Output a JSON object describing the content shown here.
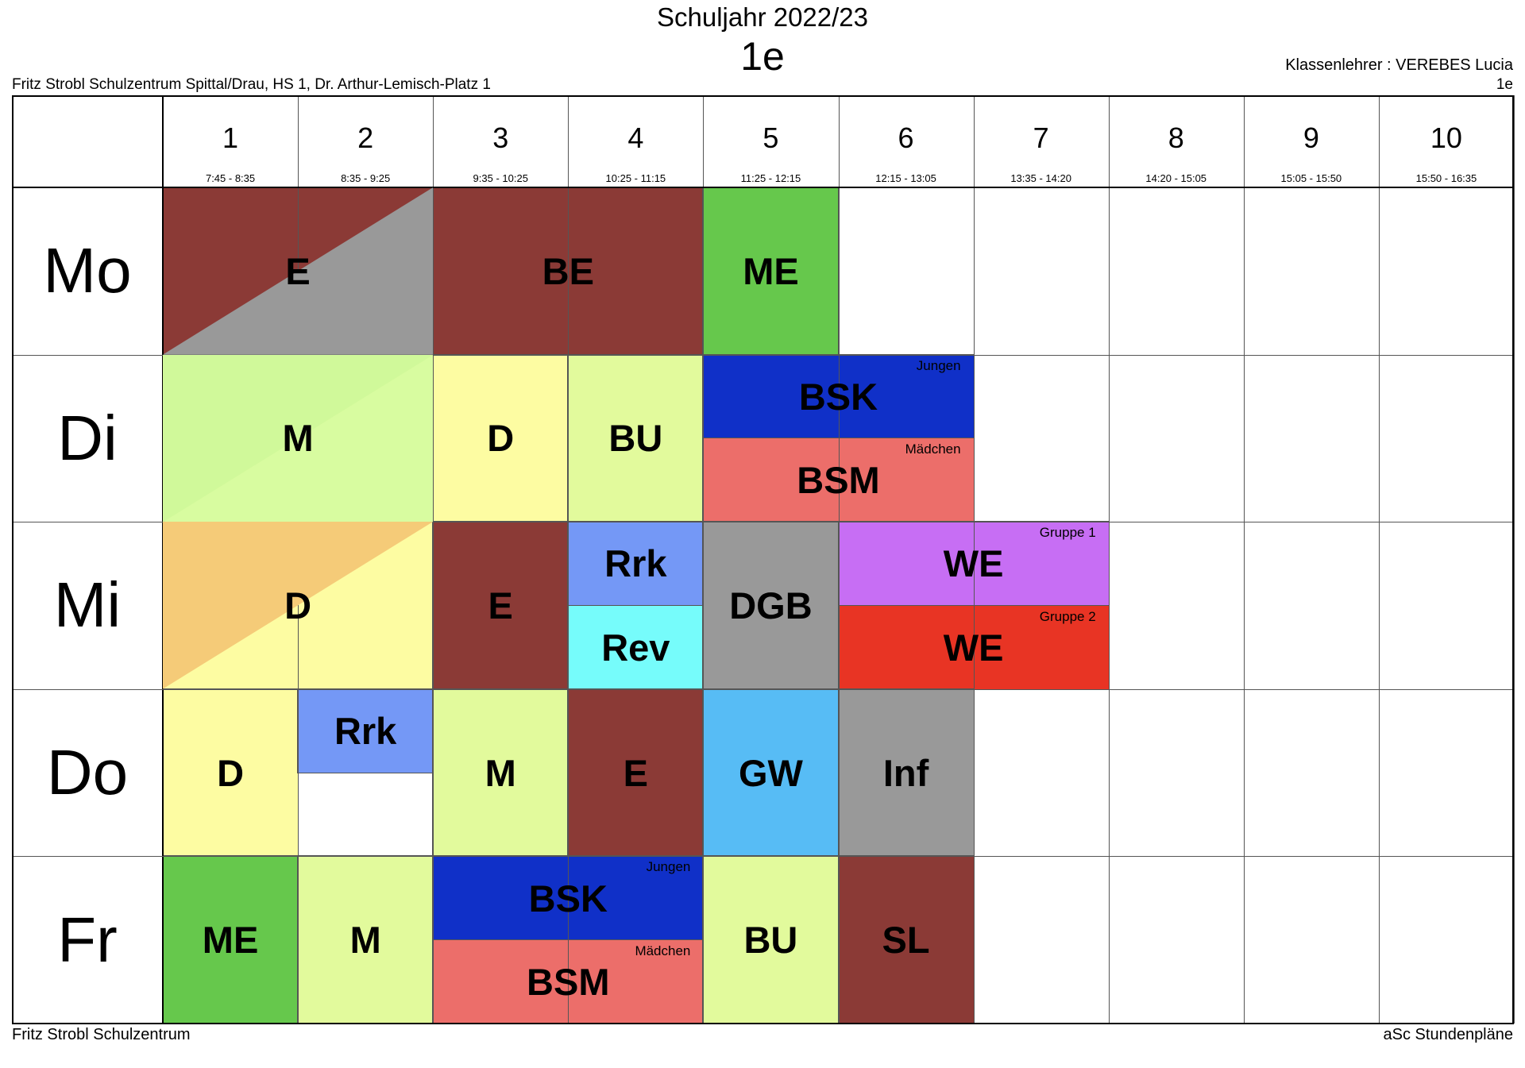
{
  "header": {
    "title": "Schuljahr 2022/23",
    "class": "1e",
    "school": "Fritz Strobl Schulzentrum Spittal/Drau, HS 1, Dr. Arthur-Lemisch-Platz 1",
    "teacher": "Klassenlehrer : VEREBES Lucia",
    "class_right": "1e"
  },
  "footer": {
    "left": "Fritz Strobl Schulzentrum",
    "right": "aSc Stundenpläne"
  },
  "periods": [
    {
      "num": "1",
      "time": "7:45 - 8:35"
    },
    {
      "num": "2",
      "time": "8:35 - 9:25"
    },
    {
      "num": "3",
      "time": "9:35 - 10:25"
    },
    {
      "num": "4",
      "time": "10:25 - 11:15"
    },
    {
      "num": "5",
      "time": "11:25 - 12:15"
    },
    {
      "num": "6",
      "time": "12:15 - 13:05"
    },
    {
      "num": "7",
      "time": "13:35 - 14:20"
    },
    {
      "num": "8",
      "time": "14:20 - 15:05"
    },
    {
      "num": "9",
      "time": "15:05 - 15:50"
    },
    {
      "num": "10",
      "time": "15:50 - 16:35"
    }
  ],
  "days": [
    "Mo",
    "Di",
    "Mi",
    "Do",
    "Fr"
  ],
  "lessons": [
    {
      "day": 0,
      "start": 1,
      "span": 2,
      "half": "full",
      "subject": "E",
      "color": "#8b3a36",
      "diag": "#999999"
    },
    {
      "day": 0,
      "start": 3,
      "span": 2,
      "half": "full",
      "subject": "BE",
      "color": "#8b3a36"
    },
    {
      "day": 0,
      "start": 5,
      "span": 1,
      "half": "full",
      "subject": "ME",
      "color": "#66c84c"
    },
    {
      "day": 1,
      "start": 1,
      "span": 2,
      "half": "full",
      "subject": "M",
      "color": "#e2fa9c",
      "diag": "#d8fca0",
      "diag_first": "#d0f99a"
    },
    {
      "day": 1,
      "start": 3,
      "span": 1,
      "half": "full",
      "subject": "D",
      "color": "#fdfca2"
    },
    {
      "day": 1,
      "start": 4,
      "span": 1,
      "half": "full",
      "subject": "BU",
      "color": "#e2fa9c"
    },
    {
      "day": 1,
      "start": 5,
      "span": 2,
      "half": "top",
      "subject": "BSK",
      "group": "Jungen",
      "color": "#1030c8"
    },
    {
      "day": 1,
      "start": 5,
      "span": 2,
      "half": "bottom",
      "subject": "BSM",
      "group": "Mädchen",
      "color": "#ec6e6a"
    },
    {
      "day": 2,
      "start": 1,
      "span": 2,
      "half": "full",
      "subject": "D",
      "color": "#fdfca2",
      "diag_first": "#f5cb78"
    },
    {
      "day": 2,
      "start": 3,
      "span": 1,
      "half": "full",
      "subject": "E",
      "color": "#8b3a36"
    },
    {
      "day": 2,
      "start": 4,
      "span": 1,
      "half": "top",
      "subject": "Rrk",
      "color": "#7498f6"
    },
    {
      "day": 2,
      "start": 4,
      "span": 1,
      "half": "bottom",
      "subject": "Rev",
      "color": "#76fcfb"
    },
    {
      "day": 2,
      "start": 5,
      "span": 1,
      "half": "full",
      "subject": "DGB",
      "color": "#999999"
    },
    {
      "day": 2,
      "start": 6,
      "span": 2,
      "half": "top",
      "subject": "WE",
      "group": "Gruppe 1",
      "color": "#c76ef4"
    },
    {
      "day": 2,
      "start": 6,
      "span": 2,
      "half": "bottom",
      "subject": "WE",
      "group": "Gruppe 2",
      "color": "#e83424"
    },
    {
      "day": 3,
      "start": 1,
      "span": 1,
      "half": "full",
      "subject": "D",
      "color": "#fdfca2"
    },
    {
      "day": 3,
      "start": 2,
      "span": 1,
      "half": "top",
      "subject": "Rrk",
      "color": "#7498f6"
    },
    {
      "day": 3,
      "start": 3,
      "span": 1,
      "half": "full",
      "subject": "M",
      "color": "#e2fa9c"
    },
    {
      "day": 3,
      "start": 4,
      "span": 1,
      "half": "full",
      "subject": "E",
      "color": "#8b3a36"
    },
    {
      "day": 3,
      "start": 5,
      "span": 1,
      "half": "full",
      "subject": "GW",
      "color": "#57bcf5"
    },
    {
      "day": 3,
      "start": 6,
      "span": 1,
      "half": "full",
      "subject": "Inf",
      "color": "#999999"
    },
    {
      "day": 4,
      "start": 1,
      "span": 1,
      "half": "full",
      "subject": "ME",
      "color": "#66c84c"
    },
    {
      "day": 4,
      "start": 2,
      "span": 1,
      "half": "full",
      "subject": "M",
      "color": "#e2fa9c"
    },
    {
      "day": 4,
      "start": 3,
      "span": 2,
      "half": "top",
      "subject": "BSK",
      "group": "Jungen",
      "color": "#1030c8"
    },
    {
      "day": 4,
      "start": 3,
      "span": 2,
      "half": "bottom",
      "subject": "BSM",
      "group": "Mädchen",
      "color": "#ec6e6a"
    },
    {
      "day": 4,
      "start": 5,
      "span": 1,
      "half": "full",
      "subject": "BU",
      "color": "#e2fa9c"
    },
    {
      "day": 4,
      "start": 6,
      "span": 1,
      "half": "full",
      "subject": "SL",
      "color": "#8b3a36"
    }
  ]
}
